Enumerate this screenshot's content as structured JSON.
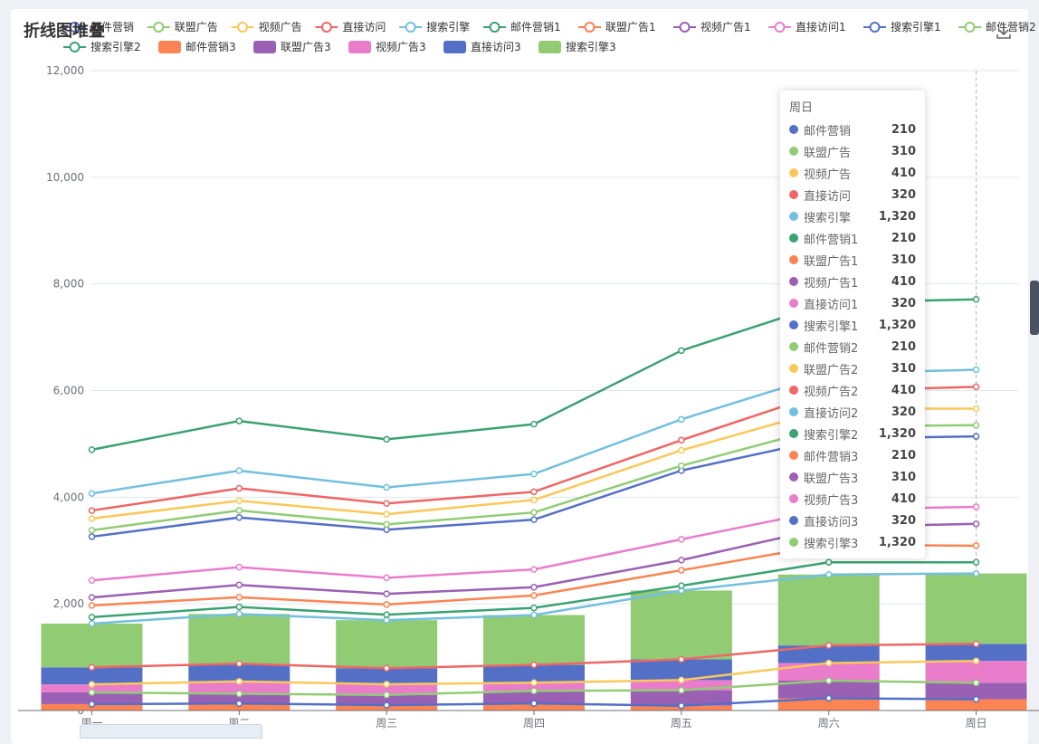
{
  "title": "折线图堆叠",
  "toolbox": {
    "download_icon": "download-icon"
  },
  "tooltip": {
    "header": "周日",
    "rows": [
      {
        "name": "邮件营销",
        "value": "210",
        "color": "#5470c6"
      },
      {
        "name": "联盟广告",
        "value": "310",
        "color": "#91cc75"
      },
      {
        "name": "视频广告",
        "value": "410",
        "color": "#fac858"
      },
      {
        "name": "直接访问",
        "value": "320",
        "color": "#ee6666"
      },
      {
        "name": "搜索引擎",
        "value": "1,320",
        "color": "#73c0de"
      },
      {
        "name": "邮件营销1",
        "value": "210",
        "color": "#3ba272"
      },
      {
        "name": "联盟广告1",
        "value": "310",
        "color": "#fc8452"
      },
      {
        "name": "视频广告1",
        "value": "410",
        "color": "#9a60b4"
      },
      {
        "name": "直接访问1",
        "value": "320",
        "color": "#ea7ccc"
      },
      {
        "name": "搜索引擎1",
        "value": "1,320",
        "color": "#5470c6"
      },
      {
        "name": "邮件营销2",
        "value": "210",
        "color": "#91cc75"
      },
      {
        "name": "联盟广告2",
        "value": "310",
        "color": "#fac858"
      },
      {
        "name": "视频广告2",
        "value": "410",
        "color": "#ee6666"
      },
      {
        "name": "直接访问2",
        "value": "320",
        "color": "#73c0de"
      },
      {
        "name": "搜索引擎2",
        "value": "1,320",
        "color": "#3ba272"
      },
      {
        "name": "邮件营销3",
        "value": "210",
        "color": "#fc8452"
      },
      {
        "name": "联盟广告3",
        "value": "310",
        "color": "#9a60b4"
      },
      {
        "name": "视频广告3",
        "value": "410",
        "color": "#ea7ccc"
      },
      {
        "name": "直接访问3",
        "value": "320",
        "color": "#5470c6"
      },
      {
        "name": "搜索引擎3",
        "value": "1,320",
        "color": "#91cc75"
      }
    ]
  },
  "chart_data": {
    "type": "line",
    "title": "折线图堆叠",
    "stacked": true,
    "categories": [
      "周一",
      "周二",
      "周三",
      "周四",
      "周五",
      "周六",
      "周日"
    ],
    "ylim": [
      0,
      12000
    ],
    "yticks": [
      0,
      2000,
      4000,
      6000,
      8000,
      10000,
      12000
    ],
    "ytick_labels": [
      "0",
      "2,000",
      "4,000",
      "6,000",
      "8,000",
      "10,000",
      "12,000"
    ],
    "grid": true,
    "legend_position": "top",
    "series": [
      {
        "name": "邮件营销",
        "kind": "line",
        "color": "#5470c6",
        "values": [
          120,
          132,
          101,
          134,
          90,
          230,
          210
        ]
      },
      {
        "name": "联盟广告",
        "kind": "line",
        "color": "#91cc75",
        "values": [
          220,
          182,
          191,
          234,
          290,
          330,
          310
        ]
      },
      {
        "name": "视频广告",
        "kind": "line",
        "color": "#fac858",
        "values": [
          150,
          232,
          201,
          154,
          190,
          330,
          410
        ]
      },
      {
        "name": "直接访问",
        "kind": "line",
        "color": "#ee6666",
        "values": [
          320,
          332,
          301,
          334,
          390,
          330,
          320
        ]
      },
      {
        "name": "搜索引擎",
        "kind": "line",
        "color": "#73c0de",
        "values": [
          820,
          932,
          901,
          934,
          1290,
          1330,
          1320
        ]
      },
      {
        "name": "邮件营销1",
        "kind": "line",
        "color": "#3ba272",
        "values": [
          120,
          132,
          101,
          134,
          90,
          230,
          210
        ]
      },
      {
        "name": "联盟广告1",
        "kind": "line",
        "color": "#fc8452",
        "values": [
          220,
          182,
          191,
          234,
          290,
          330,
          310
        ]
      },
      {
        "name": "视频广告1",
        "kind": "line",
        "color": "#9a60b4",
        "values": [
          150,
          232,
          201,
          154,
          190,
          330,
          410
        ]
      },
      {
        "name": "直接访问1",
        "kind": "line",
        "color": "#ea7ccc",
        "values": [
          320,
          332,
          301,
          334,
          390,
          330,
          320
        ]
      },
      {
        "name": "搜索引擎1",
        "kind": "line",
        "color": "#5470c6",
        "values": [
          820,
          932,
          901,
          934,
          1290,
          1330,
          1320
        ]
      },
      {
        "name": "邮件营销2",
        "kind": "line",
        "color": "#91cc75",
        "values": [
          120,
          132,
          101,
          134,
          90,
          230,
          210
        ]
      },
      {
        "name": "联盟广告2",
        "kind": "line",
        "color": "#fac858",
        "values": [
          220,
          182,
          191,
          234,
          290,
          330,
          310
        ]
      },
      {
        "name": "视频广告2",
        "kind": "line",
        "color": "#ee6666",
        "values": [
          150,
          232,
          201,
          154,
          190,
          330,
          410
        ]
      },
      {
        "name": "直接访问2",
        "kind": "line",
        "color": "#73c0de",
        "values": [
          320,
          332,
          301,
          334,
          390,
          330,
          320
        ]
      },
      {
        "name": "搜索引擎2",
        "kind": "line",
        "color": "#3ba272",
        "values": [
          820,
          932,
          901,
          934,
          1290,
          1330,
          1320
        ]
      },
      {
        "name": "邮件营销3",
        "kind": "bar",
        "color": "#fc8452",
        "values": [
          120,
          132,
          101,
          134,
          90,
          230,
          210
        ]
      },
      {
        "name": "联盟广告3",
        "kind": "bar",
        "color": "#9a60b4",
        "values": [
          220,
          182,
          191,
          234,
          290,
          330,
          310
        ]
      },
      {
        "name": "视频广告3",
        "kind": "bar",
        "color": "#ea7ccc",
        "values": [
          150,
          232,
          201,
          154,
          190,
          330,
          410
        ]
      },
      {
        "name": "直接访问3",
        "kind": "bar",
        "color": "#5470c6",
        "values": [
          320,
          332,
          301,
          334,
          390,
          330,
          320
        ]
      },
      {
        "name": "搜索引擎3",
        "kind": "bar",
        "color": "#91cc75",
        "values": [
          820,
          932,
          901,
          934,
          1290,
          1330,
          1320
        ]
      }
    ]
  }
}
